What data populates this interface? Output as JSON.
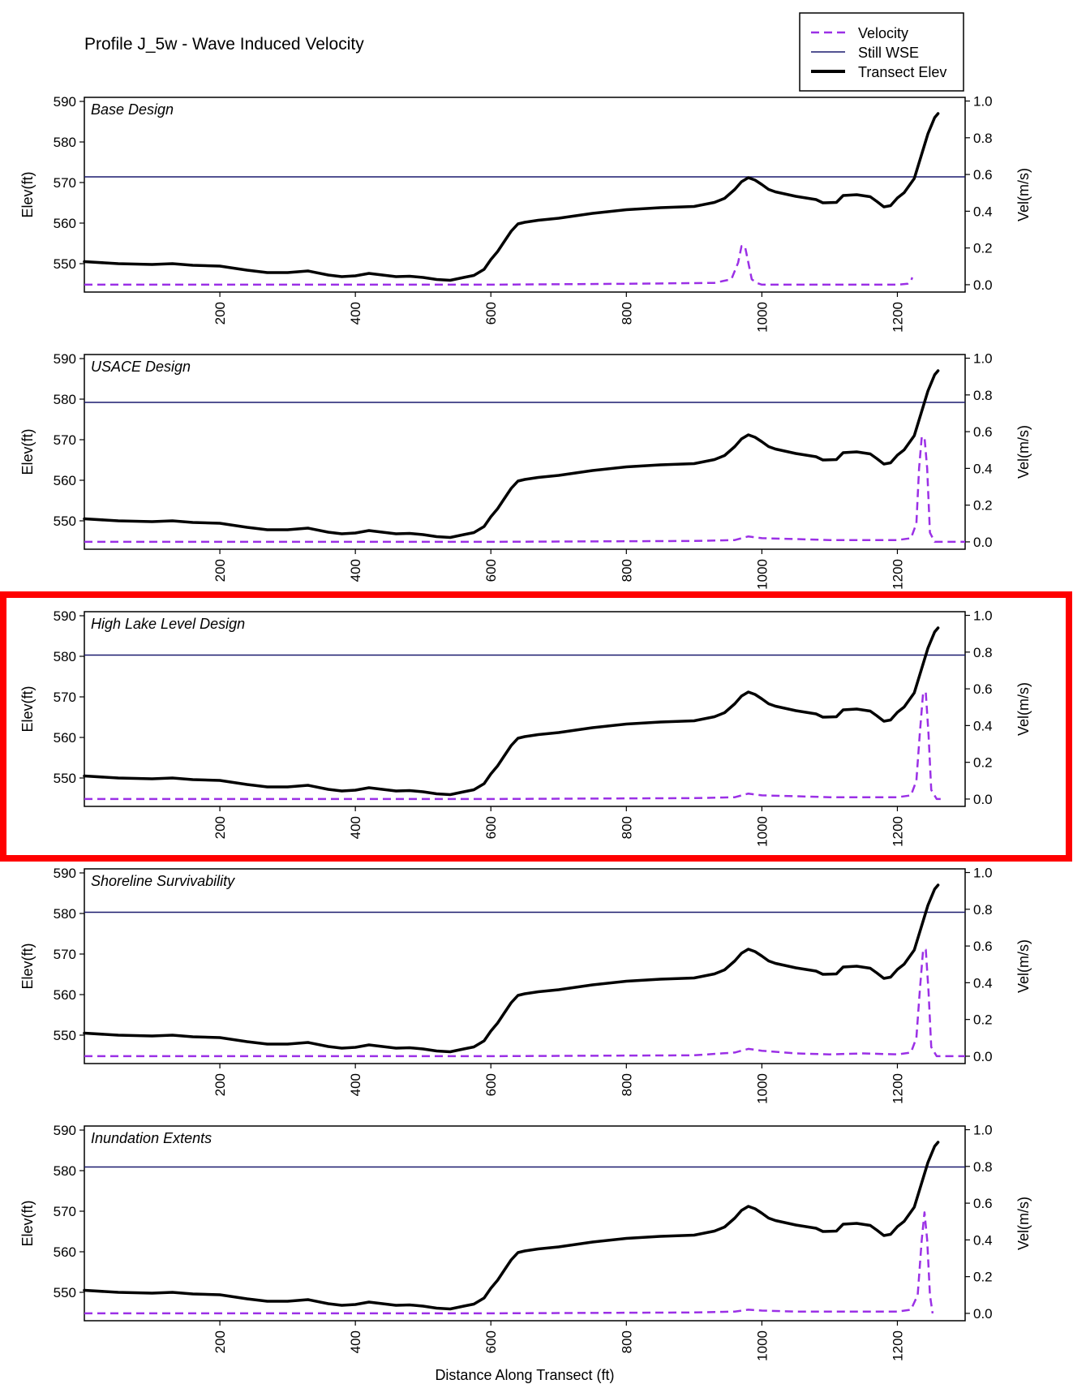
{
  "title": "Profile J_5w - Wave Induced Velocity",
  "legend": {
    "placement": "top-right",
    "items": [
      {
        "label": "Velocity",
        "color": "#9b30e6",
        "style": "dashed"
      },
      {
        "label": "Still WSE",
        "color": "#1a1a6e",
        "style": "solid-thin"
      },
      {
        "label": "Transect Elev",
        "color": "#000000",
        "style": "solid-thick"
      }
    ]
  },
  "chart_data": {
    "type": "line",
    "xlabel": "Distance Along Transect (ft)",
    "ylabel": "Elev(ft)",
    "y2label": "Vel(m/s)",
    "xlim": [
      0,
      1300
    ],
    "ylim": [
      543,
      591
    ],
    "y2lim": [
      -0.04,
      1.02
    ],
    "xticks": [
      200,
      400,
      600,
      800,
      1000,
      1200
    ],
    "yticks": [
      550,
      560,
      570,
      580,
      590
    ],
    "y2ticks": [
      0.0,
      0.2,
      0.4,
      0.6,
      0.8,
      1.0
    ],
    "y2ticklabels": [
      "0.0",
      "0.2",
      "0.4",
      "0.6",
      "0.8",
      "1.0"
    ],
    "grid": false,
    "highlighted_panel": "High Lake Level Design",
    "transect_elev": {
      "name": "Transect Elev",
      "x": [
        0,
        50,
        100,
        130,
        160,
        200,
        240,
        270,
        300,
        330,
        360,
        380,
        400,
        420,
        440,
        460,
        480,
        500,
        520,
        540,
        560,
        575,
        590,
        600,
        610,
        620,
        630,
        640,
        650,
        670,
        700,
        750,
        800,
        850,
        900,
        930,
        945,
        960,
        970,
        980,
        990,
        1000,
        1010,
        1020,
        1050,
        1080,
        1090,
        1110,
        1120,
        1140,
        1160,
        1170,
        1180,
        1190,
        1200,
        1210,
        1225,
        1235,
        1245,
        1255,
        1260
      ],
      "y": [
        550.5,
        550.0,
        549.8,
        550.0,
        549.6,
        549.4,
        548.4,
        547.8,
        547.8,
        548.2,
        547.2,
        546.8,
        547.0,
        547.6,
        547.2,
        546.8,
        546.9,
        546.6,
        546.1,
        545.9,
        546.6,
        547.1,
        548.6,
        551.0,
        553.0,
        555.5,
        558.0,
        559.8,
        560.2,
        560.7,
        561.2,
        562.4,
        563.3,
        563.8,
        564.1,
        565.1,
        566.1,
        568.3,
        570.2,
        571.2,
        570.6,
        569.5,
        568.3,
        567.7,
        566.6,
        565.8,
        565.0,
        565.1,
        566.8,
        567.0,
        566.5,
        565.3,
        564.0,
        564.3,
        566.2,
        567.5,
        571.0,
        576.5,
        582.0,
        586.0,
        587.0
      ]
    },
    "panels": [
      {
        "title": "Base Design",
        "still_wse": 571.4,
        "velocity": {
          "name": "Velocity",
          "x": [
            0,
            600,
            800,
            930,
            955,
            965,
            970,
            975,
            980,
            985,
            992,
            1000,
            1100,
            1200,
            1215,
            1220,
            1222
          ],
          "y": [
            0.0,
            0.0,
            0.005,
            0.01,
            0.03,
            0.12,
            0.21,
            0.21,
            0.12,
            0.03,
            0.01,
            0.0,
            0.0,
            0.0,
            0.005,
            0.02,
            0.04
          ]
        }
      },
      {
        "title": "USACE Design",
        "still_wse": 579.2,
        "velocity": {
          "name": "Velocity",
          "x": [
            0,
            600,
            900,
            960,
            980,
            1000,
            1050,
            1100,
            1150,
            1200,
            1220,
            1228,
            1232,
            1236,
            1240,
            1244,
            1248,
            1255,
            1300
          ],
          "y": [
            0.0,
            0.0,
            0.005,
            0.01,
            0.03,
            0.02,
            0.015,
            0.01,
            0.01,
            0.01,
            0.02,
            0.1,
            0.4,
            0.57,
            0.57,
            0.4,
            0.05,
            0.0,
            0.0
          ]
        }
      },
      {
        "title": "High Lake Level Design",
        "still_wse": 580.3,
        "velocity": {
          "name": "Velocity",
          "x": [
            0,
            600,
            900,
            960,
            980,
            1000,
            1050,
            1100,
            1150,
            1200,
            1220,
            1228,
            1233,
            1238,
            1242,
            1246,
            1250,
            1258,
            1265
          ],
          "y": [
            0.0,
            0.0,
            0.005,
            0.01,
            0.03,
            0.02,
            0.015,
            0.01,
            0.01,
            0.01,
            0.02,
            0.1,
            0.35,
            0.58,
            0.58,
            0.35,
            0.05,
            0.0,
            0.0
          ]
        }
      },
      {
        "title": "Shoreline Survivability",
        "still_wse": 580.3,
        "velocity": {
          "name": "Velocity",
          "x": [
            0,
            600,
            900,
            960,
            980,
            1000,
            1050,
            1100,
            1150,
            1200,
            1220,
            1228,
            1233,
            1238,
            1242,
            1246,
            1250,
            1258,
            1300
          ],
          "y": [
            0.0,
            0.0,
            0.005,
            0.02,
            0.04,
            0.03,
            0.015,
            0.01,
            0.015,
            0.01,
            0.02,
            0.1,
            0.35,
            0.58,
            0.58,
            0.35,
            0.05,
            0.0,
            0.0
          ]
        }
      },
      {
        "title": "Inundation Extents",
        "still_wse": 580.9,
        "velocity": {
          "name": "Velocity",
          "x": [
            0,
            600,
            900,
            960,
            980,
            1000,
            1050,
            1100,
            1150,
            1200,
            1220,
            1230,
            1236,
            1240,
            1244,
            1248,
            1252
          ],
          "y": [
            0.0,
            0.0,
            0.005,
            0.01,
            0.02,
            0.015,
            0.01,
            0.01,
            0.01,
            0.01,
            0.02,
            0.1,
            0.4,
            0.55,
            0.4,
            0.1,
            0.0
          ]
        }
      }
    ]
  }
}
